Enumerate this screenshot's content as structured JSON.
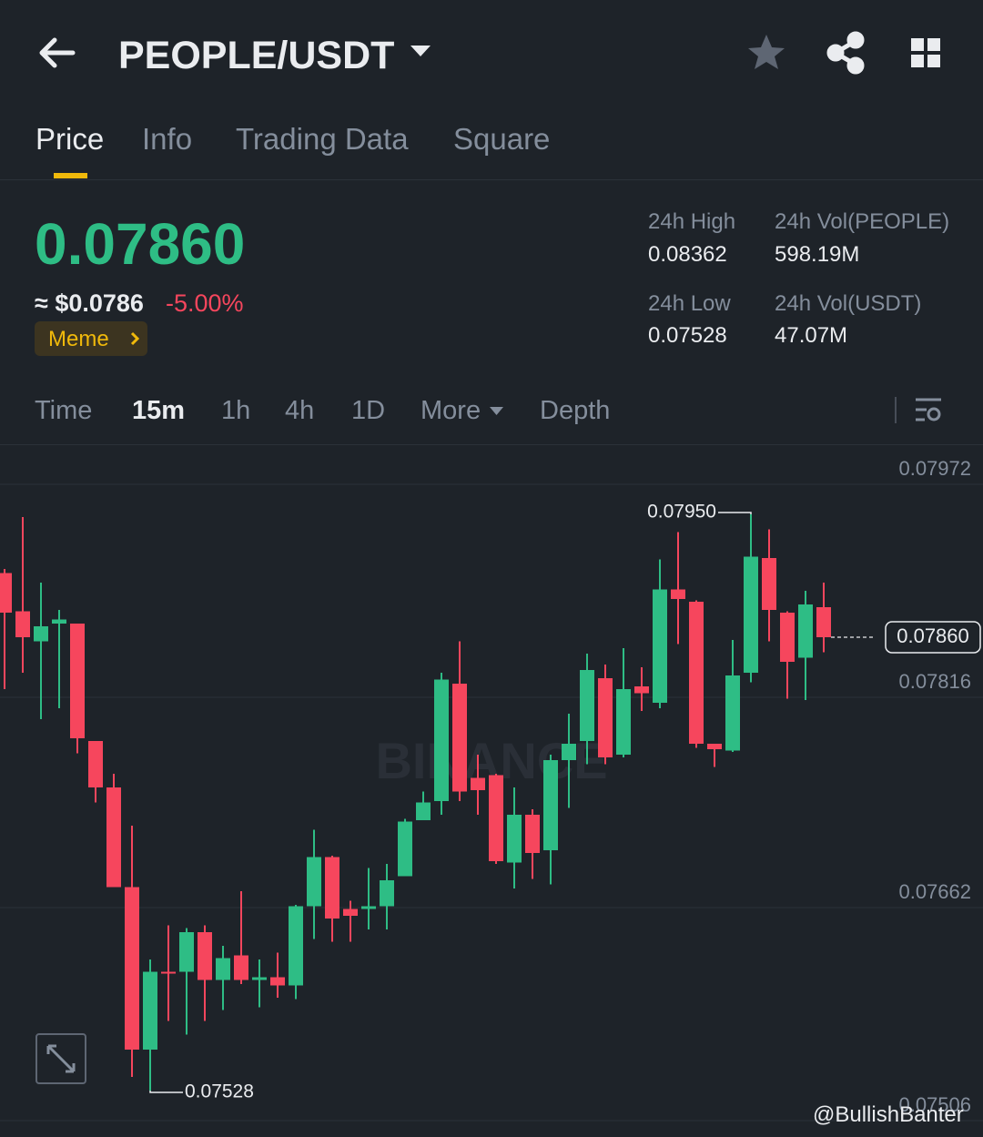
{
  "header": {
    "pair": "PEOPLE/USDT"
  },
  "tabs": [
    "Price",
    "Info",
    "Trading Data",
    "Square"
  ],
  "price": {
    "last": "0.07860",
    "usd": "≈ $0.0786",
    "change": "-5.00%",
    "tag": "Meme"
  },
  "stats": [
    {
      "label": "24h High",
      "value": "0.08362"
    },
    {
      "label": "24h Vol(PEOPLE)",
      "value": "598.19M"
    },
    {
      "label": "24h Low",
      "value": "0.07528"
    },
    {
      "label": "24h Vol(USDT)",
      "value": "47.07M"
    }
  ],
  "intervals": [
    "Time",
    "15m",
    "1h",
    "4h",
    "1D",
    "More",
    "Depth"
  ],
  "chart_data": {
    "type": "candlestick",
    "watermark": "BINANCE",
    "up_color": "#2ebd85",
    "down_color": "#f6465d",
    "open": [
      0.07907,
      0.07879,
      0.07857,
      0.0787,
      0.0787,
      0.07784,
      0.0775,
      0.07677,
      0.07558,
      0.07615,
      0.07615,
      0.07644,
      0.07609,
      0.07627,
      0.07609,
      0.07611,
      0.07605,
      0.07663,
      0.07699,
      0.07661,
      0.07661,
      0.07663,
      0.07685,
      0.07726,
      0.0774,
      0.07826,
      0.07757,
      0.07759,
      0.07695,
      0.0773,
      0.07704,
      0.0777,
      0.07784,
      0.0783,
      0.07774,
      0.07824,
      0.07812,
      0.07895,
      0.07886,
      0.07782,
      0.07777,
      0.07834,
      0.07918,
      0.07878,
      0.07845,
      0.07882
    ],
    "high": [
      0.0791,
      0.07948,
      0.079,
      0.0788,
      0.0787,
      0.07784,
      0.0776,
      0.07722,
      0.07624,
      0.07649,
      0.07647,
      0.07649,
      0.07634,
      0.07674,
      0.07624,
      0.07629,
      0.07664,
      0.07719,
      0.077,
      0.07667,
      0.07691,
      0.07694,
      0.07727,
      0.07747,
      0.07834,
      0.07857,
      0.07774,
      0.0776,
      0.0775,
      0.07734,
      0.07774,
      0.07804,
      0.07848,
      0.0784,
      0.07852,
      0.07838,
      0.07917,
      0.07937,
      0.07887,
      0.07782,
      0.07858,
      0.0795,
      0.07939,
      0.07879,
      0.07894,
      0.079
    ],
    "low": [
      0.07822,
      0.07834,
      0.078,
      0.07808,
      0.07775,
      0.07739,
      0.07677,
      0.07538,
      0.07528,
      0.07579,
      0.07569,
      0.07579,
      0.07587,
      0.07606,
      0.07589,
      0.07596,
      0.07595,
      0.07639,
      0.07637,
      0.07637,
      0.07646,
      0.07646,
      0.07685,
      0.07726,
      0.0773,
      0.0774,
      0.0773,
      0.07694,
      0.07676,
      0.07683,
      0.07679,
      0.07735,
      0.07767,
      0.07767,
      0.07772,
      0.07806,
      0.07808,
      0.07855,
      0.07779,
      0.07765,
      0.07776,
      0.07827,
      0.07857,
      0.07815,
      0.07814,
      0.07849
    ],
    "close": [
      0.07878,
      0.0786,
      0.07868,
      0.07873,
      0.07786,
      0.0775,
      0.07677,
      0.07558,
      0.07615,
      0.07614,
      0.07644,
      0.07609,
      0.07625,
      0.07609,
      0.07611,
      0.07605,
      0.07663,
      0.07699,
      0.07654,
      0.07656,
      0.07663,
      0.07682,
      0.07725,
      0.07739,
      0.07829,
      0.07747,
      0.07748,
      0.07696,
      0.0773,
      0.07702,
      0.0777,
      0.07782,
      0.07836,
      0.07772,
      0.07822,
      0.07819,
      0.07895,
      0.07888,
      0.07782,
      0.07778,
      0.07832,
      0.07919,
      0.0788,
      0.07842,
      0.07884,
      0.0786
    ],
    "ylim": [
      0.07506,
      0.08
    ],
    "yticks": [
      0.07972,
      0.07816,
      0.07662,
      0.07506
    ],
    "grid": true,
    "last_price": {
      "value": 0.0786,
      "label": "0.07860"
    },
    "annotations": [
      {
        "value": 0.0795,
        "label": "0.07950"
      },
      {
        "value": 0.07528,
        "label": "0.07528"
      }
    ]
  },
  "credit": "@BullishBanter"
}
